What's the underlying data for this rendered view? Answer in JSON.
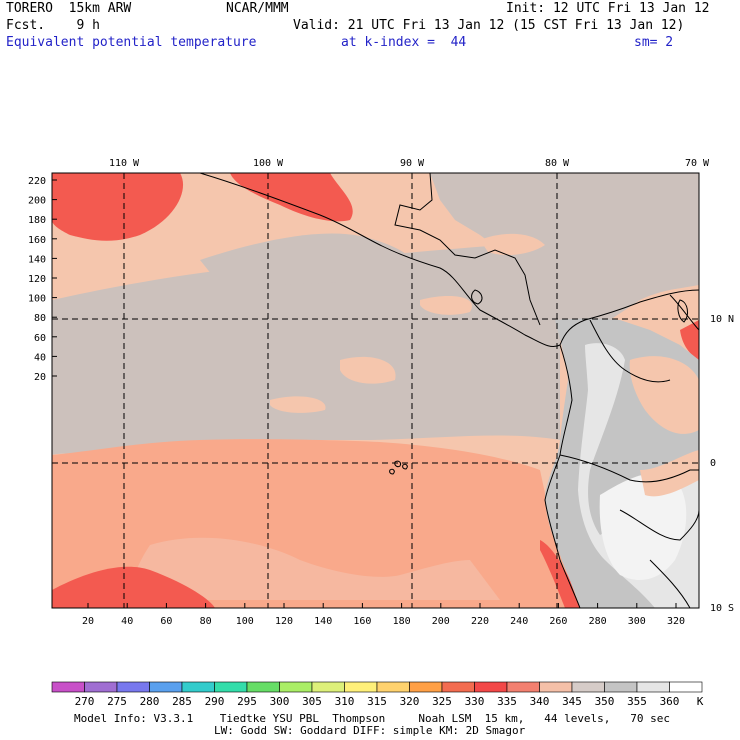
{
  "header": {
    "model": "TORERO  15km ARW",
    "org": "NCAR/MMM",
    "init": "Init: 12 UTC Fri 13 Jan 12",
    "fcst": "Fcst.    9 h",
    "valid": "Valid: 21 UTC Fri 13 Jan 12 (15 CST Fri 13 Jan 12)",
    "field": "Equivalent potential temperature",
    "level": "at k-index =  44",
    "smooth": "sm= 2"
  },
  "map": {
    "lon_labels": [
      "110 W",
      "100 W",
      "90 W",
      "80 W",
      "70 W"
    ],
    "lat_labels": [
      "10 N",
      "0",
      "10 S"
    ],
    "y_ticks": [
      "220",
      "200",
      "180",
      "160",
      "140",
      "120",
      "100",
      "80",
      "60",
      "40",
      "20"
    ],
    "x_ticks": [
      "20",
      "40",
      "60",
      "80",
      "100",
      "120",
      "140",
      "160",
      "180",
      "200",
      "220",
      "240",
      "260",
      "280",
      "300",
      "320"
    ],
    "colors": {
      "ocean_warm": "#f9a98b",
      "ocean_pale": "#f5c6ad",
      "ocean_grey": "#ccc1bc",
      "hot": "#f35a50",
      "land_grey": "#b8b8b8",
      "land_light": "#e6e6e6",
      "land_white": "#f3f3f3"
    }
  },
  "colorbar": {
    "labels": [
      "270",
      "275",
      "280",
      "285",
      "290",
      "295",
      "300",
      "305",
      "310",
      "315",
      "320",
      "325",
      "330",
      "335",
      "340",
      "345",
      "350",
      "355",
      "360"
    ],
    "unit": "K",
    "colors": [
      "#c850c8",
      "#a06ed2",
      "#7878ee",
      "#5aa0ee",
      "#33cccc",
      "#33ddaa",
      "#66dd66",
      "#aaee66",
      "#ddf07a",
      "#fff07a",
      "#ffd26e",
      "#ffa046",
      "#f36c50",
      "#f34848",
      "#f38070",
      "#f5c0a8",
      "#d6ccc8",
      "#c4c4c4",
      "#e6e6e6",
      "#ffffff"
    ]
  },
  "footer": {
    "line1": "Model Info: V3.3.1    Tiedtke YSU PBL  Thompson     Noah LSM  15 km,   44 levels,   70 sec",
    "line2": "LW: Godd SW: Goddard DIFF: simple KM: 2D Smagor"
  }
}
